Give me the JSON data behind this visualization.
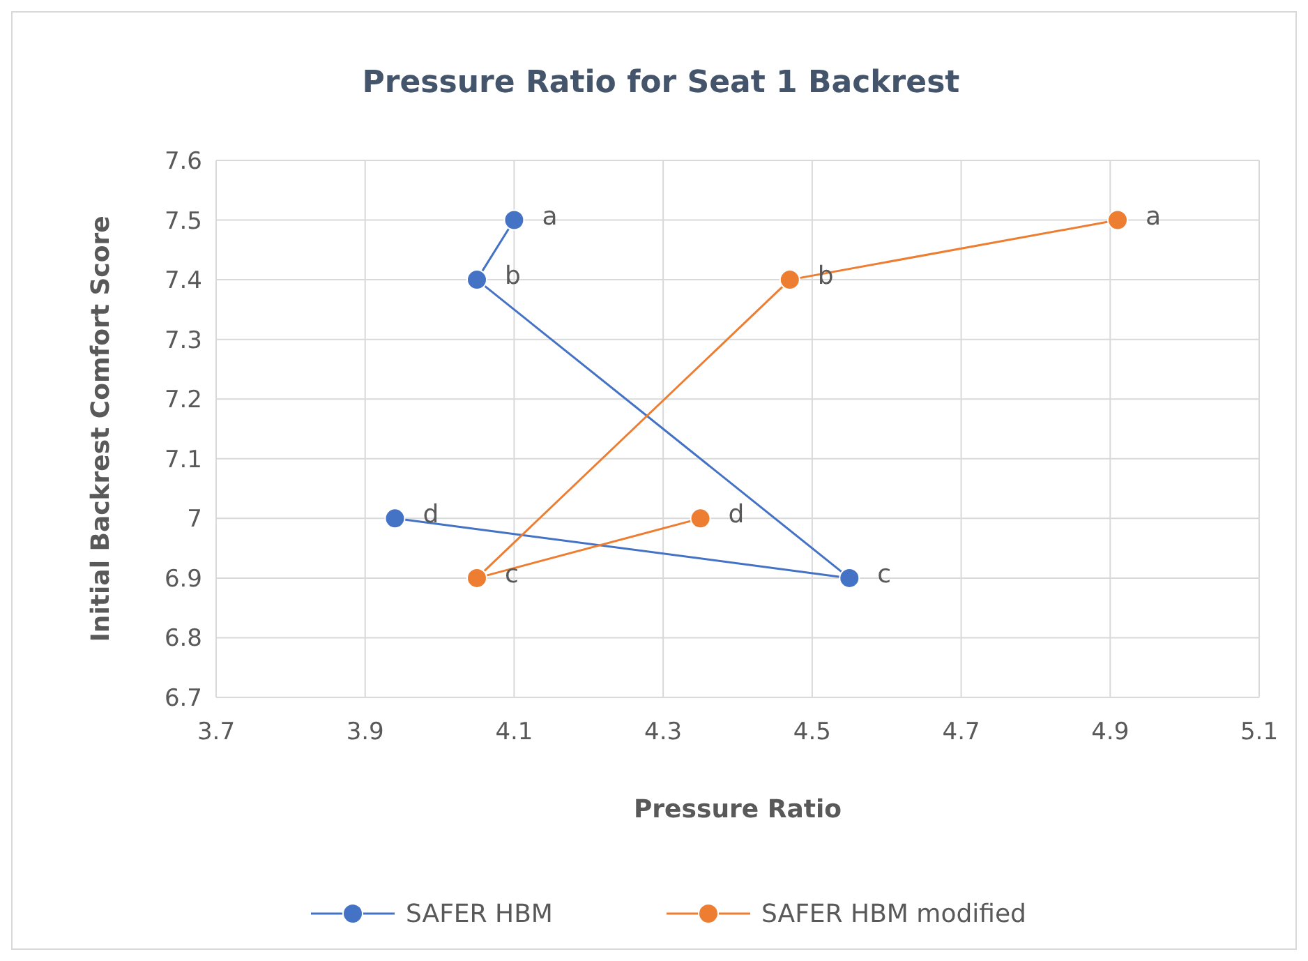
{
  "chart_data": {
    "type": "line",
    "title": "Pressure Ratio for Seat 1 Backrest",
    "xlabel": "Pressure Ratio",
    "ylabel": "Initial Backrest Comfort Score",
    "xlim": [
      3.7,
      5.1
    ],
    "xticks": [
      3.7,
      3.9,
      4.1,
      4.3,
      4.5,
      4.7,
      4.9,
      5.1
    ],
    "ylim": [
      6.7,
      7.6
    ],
    "yticks": [
      6.7,
      6.8,
      6.9,
      7,
      7.1,
      7.2,
      7.3,
      7.4,
      7.5,
      7.6
    ],
    "grid": true,
    "legend": "bottom",
    "marker": "circle",
    "line_style": "solid",
    "series": [
      {
        "name": "SAFER HBM",
        "color": "#4472c4",
        "x": [
          4.1,
          4.05,
          4.55,
          3.94
        ],
        "values": [
          7.5,
          7.4,
          6.9,
          7.0
        ]
      },
      {
        "name": "SAFER HBM modified",
        "color": "#ed7d31",
        "x": [
          4.91,
          4.47,
          4.05,
          4.35
        ],
        "values": [
          7.5,
          7.4,
          6.9,
          7.0
        ]
      }
    ],
    "annotations": [
      {
        "text": "a",
        "x": 4.1,
        "y": 7.5
      },
      {
        "text": "b",
        "x": 4.05,
        "y": 7.4
      },
      {
        "text": "c",
        "x": 4.55,
        "y": 6.9
      },
      {
        "text": "d",
        "x": 3.94,
        "y": 7.0
      },
      {
        "text": "a",
        "x": 4.91,
        "y": 7.5
      },
      {
        "text": "b",
        "x": 4.47,
        "y": 7.4
      },
      {
        "text": "c",
        "x": 4.05,
        "y": 6.9
      },
      {
        "text": "d",
        "x": 4.35,
        "y": 7.0
      }
    ]
  }
}
